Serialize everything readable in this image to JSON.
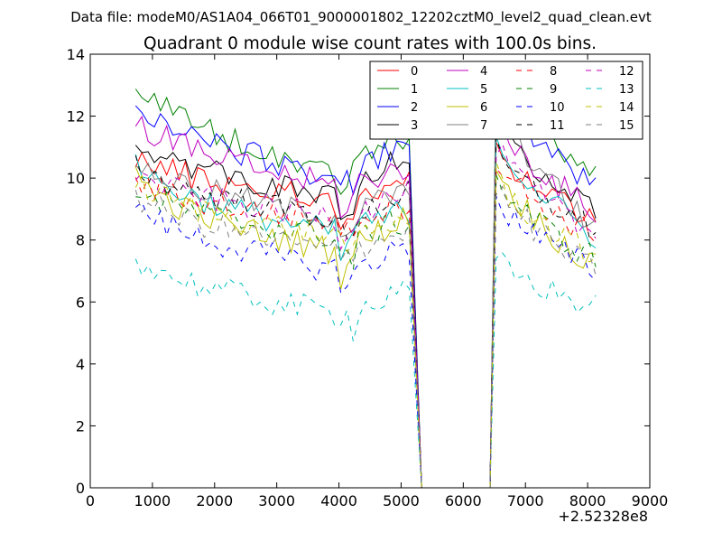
{
  "suptitle": "Data file: modeM0/AS1A04_066T01_9000001802_12202cztM0_level2_quad_clean.evt",
  "chart_data": {
    "type": "line",
    "title": "Quadrant 0 module wise count rates with 100.0s bins.",
    "xlabel": "",
    "ylabel": "",
    "x_offset_label": "+2.52328e8",
    "xlim": [
      0,
      9000
    ],
    "ylim": [
      0,
      14
    ],
    "xticks": [
      0,
      1000,
      2000,
      3000,
      4000,
      5000,
      6000,
      7000,
      8000,
      9000
    ],
    "xtick_labels": [
      "0",
      "1000",
      "2000",
      "3000",
      "4000",
      "5000",
      "6000",
      "7000",
      "8000",
      "9000"
    ],
    "yticks": [
      0,
      2,
      4,
      6,
      8,
      10,
      12,
      14
    ],
    "ytick_labels": [
      "0",
      "2",
      "4",
      "6",
      "8",
      "10",
      "12",
      "14"
    ],
    "legend_position": "top-right",
    "legend_columns": 4,
    "segments": [
      {
        "x_start": 730,
        "step": 100,
        "count": 45
      },
      {
        "x_start": 5330,
        "step": 100,
        "count": 12
      },
      {
        "x_start": 6530,
        "step": 100,
        "count": 17
      }
    ],
    "series": [
      {
        "name": "0",
        "color": "#ff0000",
        "dashed": false,
        "start": 10.8,
        "mid": 9.3,
        "pre_end": 9.8,
        "post_start": 11.0,
        "end": 8.7
      },
      {
        "name": "1",
        "color": "#008000",
        "dashed": false,
        "start": 13.3,
        "mid": 10.2,
        "pre_end": 11.5,
        "post_start": 13.5,
        "end": 10.0
      },
      {
        "name": "2",
        "color": "#0000ff",
        "dashed": false,
        "start": 12.7,
        "mid": 10.0,
        "pre_end": 11.1,
        "post_start": 12.9,
        "end": 9.6
      },
      {
        "name": "3",
        "color": "#000000",
        "dashed": false,
        "start": 11.5,
        "mid": 9.3,
        "pre_end": 10.8,
        "post_start": 12.2,
        "end": 8.8
      },
      {
        "name": "4",
        "color": "#bf00bf",
        "dashed": false,
        "start": 12.1,
        "mid": 9.7,
        "pre_end": 10.4,
        "post_start": 12.0,
        "end": 8.9
      },
      {
        "name": "5",
        "color": "#00bfbf",
        "dashed": false,
        "start": 10.6,
        "mid": 8.2,
        "pre_end": 9.0,
        "post_start": 11.4,
        "end": 8.1
      },
      {
        "name": "6",
        "color": "#bfbf00",
        "dashed": false,
        "start": 10.2,
        "mid": 7.6,
        "pre_end": 8.8,
        "post_start": 10.4,
        "end": 7.1
      },
      {
        "name": "7",
        "color": "#808080",
        "dashed": false,
        "start": 10.7,
        "mid": 8.7,
        "pre_end": 9.7,
        "post_start": 12.8,
        "end": 8.3
      },
      {
        "name": "8",
        "color": "#ff0000",
        "dashed": true,
        "start": 10.0,
        "mid": 8.6,
        "pre_end": 9.2,
        "post_start": 10.6,
        "end": 8.1
      },
      {
        "name": "9",
        "color": "#008000",
        "dashed": true,
        "start": 9.7,
        "mid": 8.1,
        "pre_end": 8.6,
        "post_start": 10.0,
        "end": 7.4
      },
      {
        "name": "10",
        "color": "#0000ff",
        "dashed": true,
        "start": 9.3,
        "mid": 7.0,
        "pre_end": 7.8,
        "post_start": 9.4,
        "end": 7.0
      },
      {
        "name": "11",
        "color": "#000000",
        "dashed": true,
        "start": 10.5,
        "mid": 8.7,
        "pre_end": 9.5,
        "post_start": 10.9,
        "end": 8.3
      },
      {
        "name": "12",
        "color": "#bf00bf",
        "dashed": true,
        "start": 10.2,
        "mid": 8.7,
        "pre_end": 9.6,
        "post_start": 11.1,
        "end": 8.1
      },
      {
        "name": "13",
        "color": "#00bfbf",
        "dashed": true,
        "start": 7.6,
        "mid": 5.6,
        "pre_end": 6.3,
        "post_start": 7.4,
        "end": 5.8
      },
      {
        "name": "14",
        "color": "#bfbf00",
        "dashed": true,
        "start": 10.0,
        "mid": 8.1,
        "pre_end": 8.7,
        "post_start": 10.1,
        "end": 7.4
      },
      {
        "name": "15",
        "color": "#808080",
        "dashed": true,
        "start": 9.6,
        "mid": 7.6,
        "pre_end": 8.3,
        "post_start": 9.8,
        "end": 7.0
      }
    ]
  }
}
